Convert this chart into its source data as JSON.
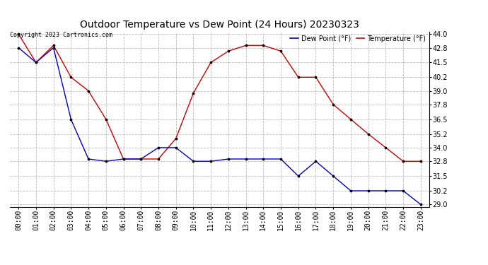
{
  "title": "Outdoor Temperature vs Dew Point (24 Hours) 20230323",
  "copyright": "Copyright 2023 Cartronics.com",
  "legend_dew": "Dew Point (°F)",
  "legend_temp": "Temperature (°F)",
  "x_labels": [
    "00:00",
    "01:00",
    "02:00",
    "03:00",
    "04:00",
    "05:00",
    "06:00",
    "07:00",
    "08:00",
    "09:00",
    "10:00",
    "11:00",
    "12:00",
    "13:00",
    "14:00",
    "15:00",
    "16:00",
    "17:00",
    "18:00",
    "19:00",
    "20:00",
    "21:00",
    "22:00",
    "23:00"
  ],
  "temperature": [
    44.0,
    41.5,
    43.0,
    40.2,
    39.0,
    36.5,
    33.0,
    33.0,
    33.0,
    34.8,
    38.8,
    41.5,
    42.5,
    43.0,
    43.0,
    42.5,
    40.2,
    40.2,
    37.8,
    36.5,
    35.2,
    34.0,
    32.8,
    32.8
  ],
  "dew_point": [
    42.8,
    41.5,
    42.8,
    36.5,
    33.0,
    32.8,
    33.0,
    33.0,
    34.0,
    34.0,
    32.8,
    32.8,
    33.0,
    33.0,
    33.0,
    33.0,
    31.5,
    32.8,
    31.5,
    30.2,
    30.2,
    30.2,
    30.2,
    29.0
  ],
  "yticks": [
    29.0,
    30.2,
    31.5,
    32.8,
    34.0,
    35.2,
    36.5,
    37.8,
    39.0,
    40.2,
    41.5,
    42.8,
    44.0
  ],
  "ylim_min": 28.8,
  "ylim_max": 44.2,
  "temp_color": "#cc0000",
  "dew_color": "#0000cc",
  "marker_color": "#000000",
  "grid_color": "#bbbbbb",
  "bg_color": "#ffffff",
  "title_fontsize": 10,
  "tick_fontsize": 7,
  "copyright_fontsize": 6,
  "legend_fontsize": 7
}
